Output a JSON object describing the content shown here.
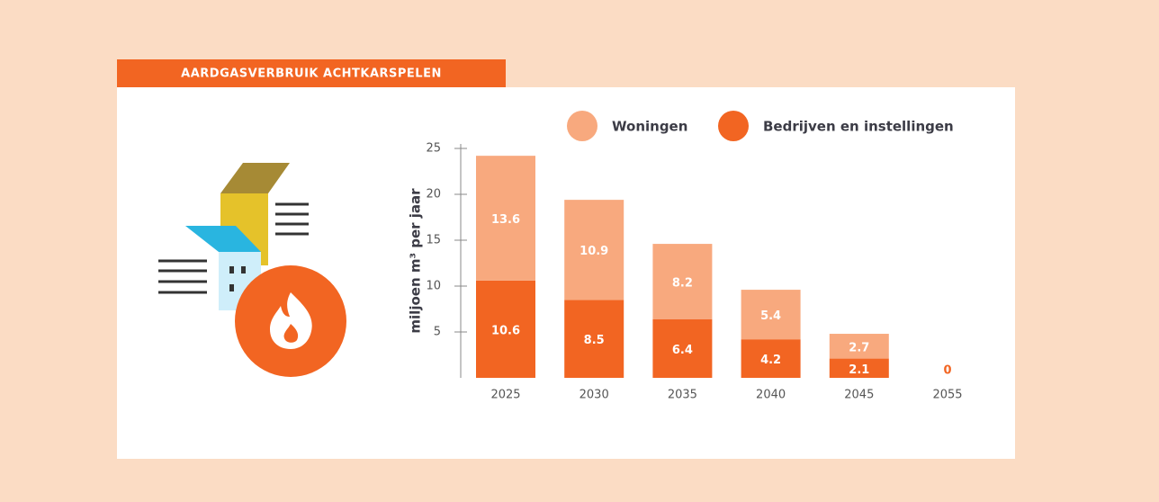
{
  "chart_data": {
    "type": "stacked-bar",
    "title": "AARDGASVERBRUIK ACHTKARSPELEN",
    "y_label": "miljoen m³ per jaar",
    "categories": [
      "2025",
      "2030",
      "2035",
      "2040",
      "2045",
      "2055"
    ],
    "series": [
      {
        "name": "Bedrijven en instellingen",
        "color": "#f26522",
        "values": [
          10.6,
          8.5,
          6.4,
          4.2,
          2.1,
          0
        ]
      },
      {
        "name": "Woningen",
        "color": "#f8a97e",
        "values": [
          13.6,
          10.9,
          8.2,
          5.4,
          2.7,
          0
        ]
      }
    ],
    "ylim": [
      0,
      25
    ],
    "yticks": [
      5,
      10,
      15,
      20,
      25
    ]
  }
}
